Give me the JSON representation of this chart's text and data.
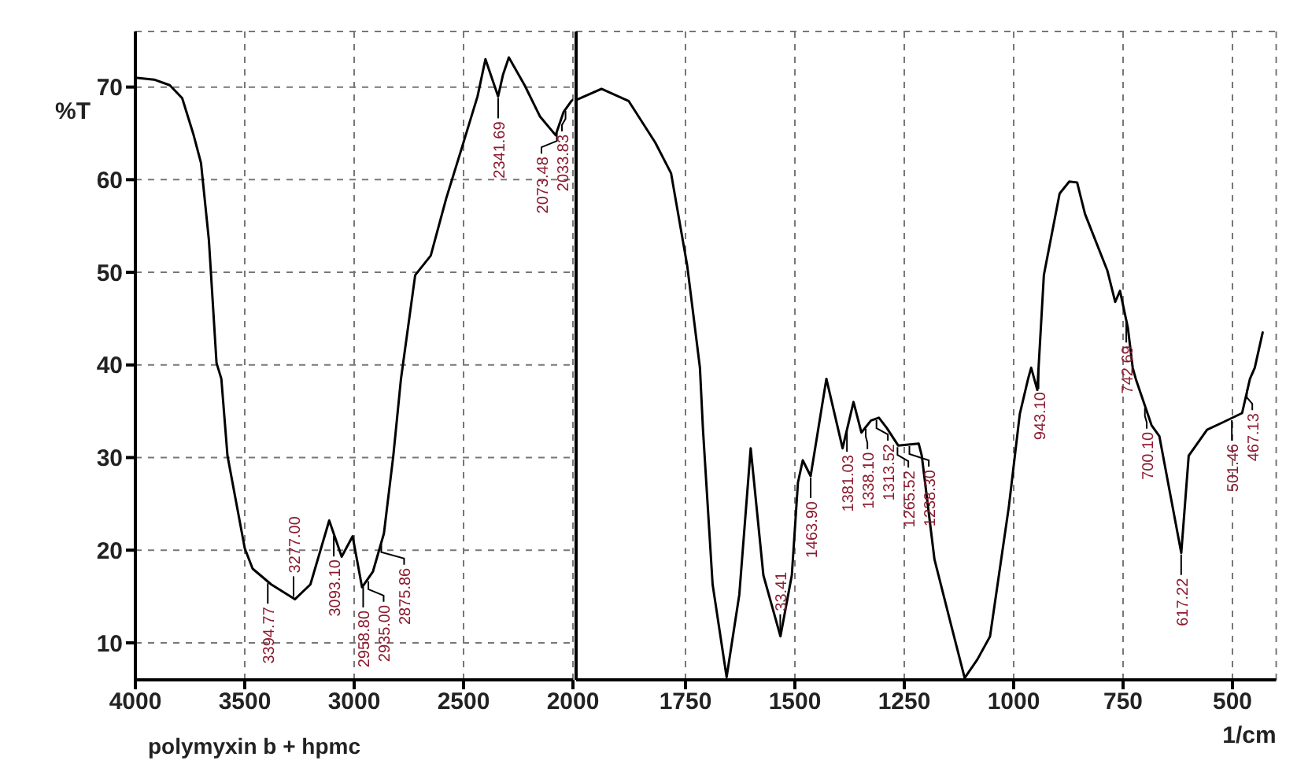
{
  "chart_data": [
    {
      "type": "line",
      "ylabel": "%T",
      "xlim": [
        4000,
        2000
      ],
      "xticks": [
        4000,
        3500,
        3000,
        2500,
        2000
      ],
      "ylim": [
        6,
        76
      ],
      "yticks": [
        10,
        20,
        30,
        40,
        50,
        60,
        70
      ],
      "grid": true,
      "legend": false,
      "marker": "none",
      "line_style": "solid",
      "x": [
        4000,
        3914,
        3843,
        3786,
        3736,
        3700,
        3664,
        3629,
        3607,
        3579,
        3500,
        3464,
        3379,
        3271,
        3200,
        3114,
        3057,
        3007,
        2964,
        2914,
        2864,
        2821,
        2786,
        2721,
        2650,
        2579,
        2507,
        2436,
        2400,
        2342,
        2320,
        2293,
        2221,
        2150,
        2079,
        2043,
        2007,
        2000
      ],
      "series": [
        {
          "color": "#000000",
          "values": [
            71,
            70.8,
            70.2,
            68.8,
            65,
            61.8,
            53.5,
            40.2,
            38.5,
            30.2,
            20.2,
            18,
            16.3,
            14.7,
            16.3,
            23.2,
            19.3,
            21.5,
            16,
            17.7,
            21.8,
            30.2,
            38.5,
            49.7,
            51.8,
            58,
            63.5,
            69,
            73,
            69,
            71.3,
            73.2,
            70.2,
            66.8,
            64.8,
            67.3,
            68.5,
            68.6
          ]
        }
      ],
      "annotations": [
        "polymyxin b + hpmc",
        {
          "text": "3394.77",
          "x": 3394.77,
          "y": 16.6
        },
        {
          "text": "3277.00",
          "x": 3277,
          "y": 14.8
        },
        {
          "text": "3093.10",
          "x": 3093.1,
          "y": 21.7
        },
        {
          "text": "2958.80",
          "x": 2958.8,
          "y": 16.2
        },
        {
          "text": "2935.00",
          "x": 2935,
          "y": 16.8
        },
        {
          "text": "2875.86",
          "x": 2875.86,
          "y": 20.8
        },
        {
          "text": "2341.69",
          "x": 2341.69,
          "y": 69
        },
        {
          "text": "2073.48",
          "x": 2073.48,
          "y": 65.2
        },
        {
          "text": "2033.83",
          "x": 2033.83,
          "y": 67.6
        }
      ]
    },
    {
      "type": "line",
      "xlabel": "1/cm",
      "xlim": [
        2000,
        400
      ],
      "xticks": [
        1750,
        1500,
        1250,
        1000,
        750,
        500
      ],
      "ylim": [
        6,
        76
      ],
      "yticks": [
        10,
        20,
        30,
        40,
        50,
        60,
        70
      ],
      "tick_labels": "x",
      "grid": true,
      "legend": false,
      "marker": "none",
      "line_style": "solid",
      "x": [
        2000,
        1942,
        1880,
        1819,
        1783,
        1746,
        1717,
        1710,
        1688,
        1656,
        1627,
        1601,
        1572,
        1533,
        1507,
        1493,
        1482,
        1464,
        1428,
        1391,
        1366,
        1348,
        1326,
        1308,
        1290,
        1264,
        1217,
        1210,
        1181,
        1145,
        1112,
        1083,
        1054,
        1011,
        986,
        967,
        960,
        946,
        931,
        895,
        873,
        855,
        837,
        786,
        768,
        757,
        739,
        728,
        721,
        685,
        667,
        617,
        600,
        558,
        522,
        478,
        460,
        449,
        431
      ],
      "series": [
        {
          "color": "#000000",
          "values": [
            68.6,
            69.8,
            68.5,
            64,
            60.7,
            50.7,
            39.7,
            33,
            16.3,
            6.3,
            15.2,
            31,
            17.3,
            10.7,
            17.3,
            27.3,
            29.7,
            28,
            38.5,
            31,
            36,
            32.7,
            34,
            34.3,
            33.2,
            31.3,
            31.5,
            30.2,
            19,
            12.3,
            6.2,
            8.2,
            10.7,
            24.7,
            34.7,
            38.5,
            39.7,
            37.3,
            49.7,
            58.5,
            59.8,
            59.7,
            56.3,
            50.2,
            46.8,
            48,
            44,
            39.7,
            38.5,
            33.5,
            32.3,
            19.7,
            30.2,
            33,
            33.8,
            34.8,
            38.5,
            39.7,
            43.5
          ]
        }
      ],
      "annotations": [
        {
          "text": "33.41",
          "x": 1533.41,
          "y": 10.7
        },
        {
          "text": "1463.90",
          "x": 1463.9,
          "y": 28
        },
        {
          "text": "1381.03",
          "x": 1381.03,
          "y": 33
        },
        {
          "text": "1338.10",
          "x": 1338.1,
          "y": 33.3
        },
        {
          "text": "1313.52",
          "x": 1313.52,
          "y": 34.2
        },
        {
          "text": "1265.52",
          "x": 1265.52,
          "y": 31.3
        },
        {
          "text": "1238.30",
          "x": 1238.3,
          "y": 31.4
        },
        {
          "text": "943.10",
          "x": 943.1,
          "y": 39.8
        },
        {
          "text": "742.69",
          "x": 742.69,
          "y": 44.8
        },
        {
          "text": "700.10",
          "x": 700.1,
          "y": 35.5
        },
        {
          "text": "617.22",
          "x": 617.22,
          "y": 19.7
        },
        {
          "text": "501.46",
          "x": 501.46,
          "y": 34.2
        },
        {
          "text": "467.13",
          "x": 467.13,
          "y": 37.5
        }
      ]
    }
  ]
}
